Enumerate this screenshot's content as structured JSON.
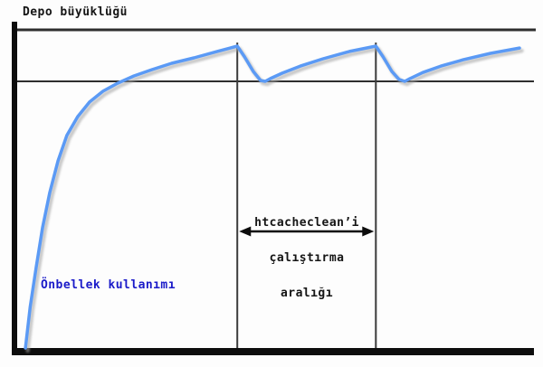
{
  "labels": {
    "y_axis_title": "Depo büyüklüğü",
    "curve_label": "Önbellek kullanımı",
    "interval_line1": "htcacheclean’i",
    "interval_line2": "çalıştırma",
    "interval_line3": "aralığı"
  },
  "colors": {
    "curve": "#5b9af5",
    "curve_shadow": "#a0a0a0",
    "curve_label_text": "#1b1bc9",
    "axis": "#0d0d0d",
    "grid_line": "#2e2e2e",
    "run_line": "#3c3c3c",
    "arrow": "#0d0d0d",
    "background": "#fdfdfd"
  },
  "chart_data": {
    "type": "line",
    "title": "Depo büyüklüğü",
    "xlabel": "",
    "ylabel": "",
    "x_range": [
      0,
      100
    ],
    "y_range": [
      0,
      100
    ],
    "grid": false,
    "legend": "none",
    "axes_numeric_labels": false,
    "series": [
      {
        "name": "Önbellek kullanımı",
        "points": [
          [
            1.6,
            0
          ],
          [
            2.5,
            12.8
          ],
          [
            3.7,
            25.6
          ],
          [
            4.9,
            37.8
          ],
          [
            6.3,
            48.9
          ],
          [
            7.9,
            58.8
          ],
          [
            9.6,
            66.8
          ],
          [
            11.7,
            72.7
          ],
          [
            14.0,
            77.3
          ],
          [
            16.6,
            80.7
          ],
          [
            19.4,
            83.2
          ],
          [
            22.6,
            85.5
          ],
          [
            26.1,
            87.5
          ],
          [
            29.9,
            89.5
          ],
          [
            34.2,
            91.2
          ],
          [
            38.7,
            93.2
          ],
          [
            42.6,
            94.9
          ],
          [
            44.0,
            91.5
          ],
          [
            45.7,
            86.9
          ],
          [
            47.1,
            84.1
          ],
          [
            48.0,
            83.8
          ],
          [
            49.0,
            84.7
          ],
          [
            51.3,
            86.4
          ],
          [
            54.8,
            88.6
          ],
          [
            59.2,
            90.9
          ],
          [
            64.3,
            93.2
          ],
          [
            69.4,
            94.9
          ],
          [
            70.8,
            91.5
          ],
          [
            72.5,
            86.9
          ],
          [
            73.9,
            84.4
          ],
          [
            75.0,
            83.8
          ],
          [
            76.0,
            84.7
          ],
          [
            78.5,
            86.6
          ],
          [
            82.0,
            88.6
          ],
          [
            86.3,
            90.6
          ],
          [
            91.6,
            92.6
          ],
          [
            97.2,
            94.3
          ]
        ]
      }
    ],
    "annotations": {
      "storage_size_line_y": 100,
      "cache_limit_line_y": 83.8,
      "cleaning_run_x": [
        42.6,
        69.4
      ],
      "run_line_top_y": 96,
      "interval_arrow_between_runs": true,
      "interval_arrow_label": "htcacheclean’i çalıştırma aralığı"
    }
  }
}
